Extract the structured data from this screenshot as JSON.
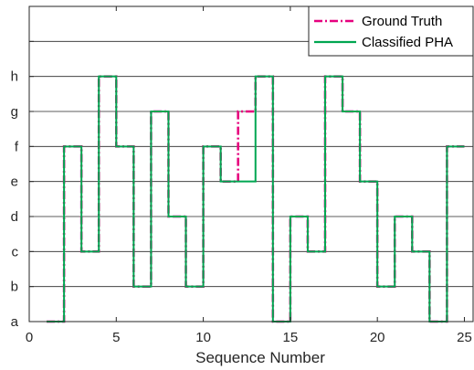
{
  "chart_data": {
    "type": "line",
    "xlabel": "Sequence Number",
    "ylabel": "",
    "xlim": [
      0,
      25.5
    ],
    "ylim": [
      0,
      9
    ],
    "x_ticks": [
      0,
      5,
      10,
      15,
      20,
      25
    ],
    "y_tick_labels": [
      "a",
      "b",
      "c",
      "d",
      "e",
      "f",
      "g",
      "h",
      "",
      ""
    ],
    "grid": "horizontal",
    "step": "post",
    "legend_position": "top-right",
    "x": [
      1,
      2,
      3,
      4,
      5,
      6,
      7,
      8,
      9,
      10,
      11,
      12,
      13,
      14,
      15,
      16,
      17,
      18,
      19,
      20,
      21,
      22,
      23,
      24,
      25
    ],
    "series": [
      {
        "name": "Ground Truth",
        "color": "#E6007E",
        "style": "dashdot",
        "values": [
          0,
          5,
          2,
          7,
          5,
          1,
          6,
          3,
          1,
          5,
          4,
          6,
          7,
          0,
          3,
          2,
          7,
          6,
          4,
          1,
          3,
          2,
          0,
          5,
          5
        ]
      },
      {
        "name": "Classified PHA",
        "color": "#00A651",
        "style": "solid",
        "values": [
          0,
          5,
          2,
          7,
          5,
          1,
          6,
          3,
          1,
          5,
          4,
          4,
          7,
          0,
          3,
          2,
          7,
          6,
          4,
          1,
          3,
          2,
          0,
          5,
          5
        ]
      }
    ]
  }
}
